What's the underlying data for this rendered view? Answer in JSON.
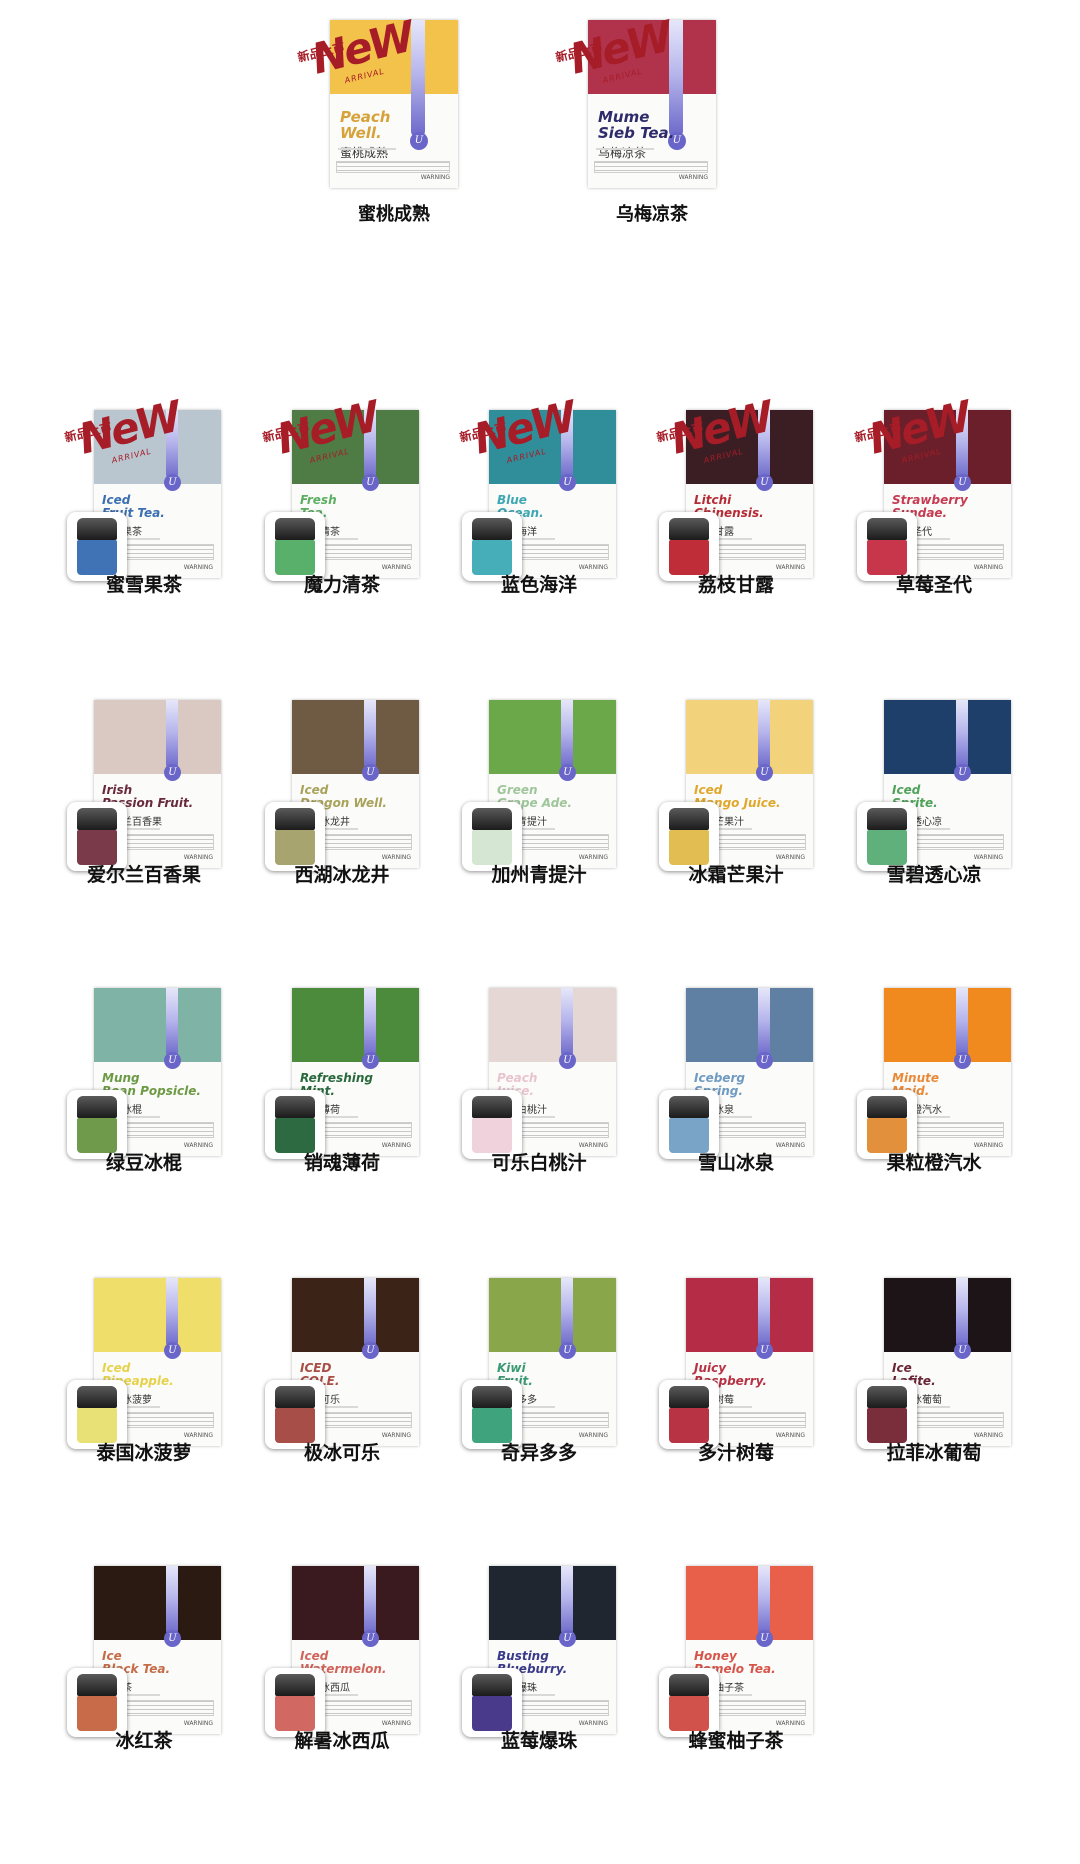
{
  "brand_glyph": "U",
  "badge": {
    "tag": "新品上市",
    "word": "NeW",
    "sub": "ARRIVAL"
  },
  "warning": "WARNING",
  "featured": [
    {
      "label": "蜜桃成熟",
      "en": "Peach\nWell.",
      "cn": "蜜桃成熟",
      "photo": "#f3c24a",
      "text_color": "#d7a23a",
      "badge": true
    },
    {
      "label": "乌梅凉茶",
      "en": "Mume\nSieb Tea.",
      "cn": "乌梅凉茶",
      "photo": "#b0334b",
      "text_color": "#2e2b6b",
      "badge": true
    }
  ],
  "products": [
    {
      "label": "蜜雪果茶",
      "en": "Iced\nFruit Tea.",
      "cn": "蜜雪果茶",
      "photo": "#b9c6cf",
      "text_color": "#3b6fb0",
      "pod": "#3f73b5",
      "badge": true
    },
    {
      "label": "魔力清茶",
      "en": "Fresh\nTea.",
      "cn": "魔力清茶",
      "photo": "#4f7b45",
      "text_color": "#5cae62",
      "pod": "#59b06a",
      "badge": true
    },
    {
      "label": "蓝色海洋",
      "en": "Blue\nOcean.",
      "cn": "蓝色海洋",
      "photo": "#2f8e9a",
      "text_color": "#3ea7b4",
      "pod": "#46aeb8",
      "badge": true
    },
    {
      "label": "荔枝甘露",
      "en": "Litchi\nChinensis.",
      "cn": "荔枝甘露",
      "photo": "#3a1e23",
      "text_color": "#b62b36",
      "pod": "#bf2e38",
      "badge": true
    },
    {
      "label": "草莓圣代",
      "en": "Strawberry\nSundae.",
      "cn": "草莓圣代",
      "photo": "#6a1f2a",
      "text_color": "#c63a52",
      "pod": "#c8364c",
      "badge": true
    },
    {
      "label": "爱尔兰百香果",
      "en": "Irish\nPassion Fruit.",
      "cn": "爱尔兰百香果",
      "photo": "#d9c9c2",
      "text_color": "#6a2a3e",
      "pod": "#7a3a4a",
      "badge": false
    },
    {
      "label": "西湖冰龙井",
      "en": "Iced\nDragon Well.",
      "cn": "西湖冰龙井",
      "photo": "#6f5a44",
      "text_color": "#a8a25a",
      "pod": "#a8a470",
      "badge": false
    },
    {
      "label": "加州青提汁",
      "en": "Green\nGrape Ade.",
      "cn": "加州青提汁",
      "photo": "#6aa84a",
      "text_color": "#9fc59a",
      "pod": "#d5e6d2",
      "badge": false
    },
    {
      "label": "冰霜芒果汁",
      "en": "Iced\nMango Juice.",
      "cn": "冰霜芒果汁",
      "photo": "#f2d27a",
      "text_color": "#e0a72a",
      "pod": "#e2bd52",
      "badge": false
    },
    {
      "label": "雪碧透心凉",
      "en": "Iced\nSprite.",
      "cn": "雪碧透心凉",
      "photo": "#1e3f6a",
      "text_color": "#4ea25a",
      "pod": "#5fb07a",
      "badge": false
    },
    {
      "label": "绿豆冰棍",
      "en": "Mung\nBean Popsicle.",
      "cn": "绿豆冰棍",
      "photo": "#7fb3a6",
      "text_color": "#6c9a45",
      "pod": "#6f9a4c",
      "badge": false
    },
    {
      "label": "销魂薄荷",
      "en": "Refreshing\nMint.",
      "cn": "销魂薄荷",
      "photo": "#4c8a3c",
      "text_color": "#2a6a3e",
      "pod": "#2d6a41",
      "badge": false
    },
    {
      "label": "可乐白桃汁",
      "en": "Peach\nJuice.",
      "cn": "可乐白桃汁",
      "photo": "#e4d7d4",
      "text_color": "#e9c4cf",
      "pod": "#f0d2dd",
      "badge": false
    },
    {
      "label": "雪山冰泉",
      "en": "Iceberg\nSpring.",
      "cn": "雪山冰泉",
      "photo": "#5f7fa3",
      "text_color": "#6f9ac2",
      "pod": "#7aa3c8",
      "badge": false
    },
    {
      "label": "果粒橙汽水",
      "en": "Minute\nMaid.",
      "cn": "果粒橙汽水",
      "photo": "#f08a1e",
      "text_color": "#e88a3a",
      "pod": "#e3903d",
      "badge": false
    },
    {
      "label": "泰国冰菠萝",
      "en": "Iced\nPineapple.",
      "cn": "泰国冰菠萝",
      "photo": "#f0de6a",
      "text_color": "#e6d24a",
      "pod": "#e8e276",
      "badge": false
    },
    {
      "label": "极冰可乐",
      "en": "ICED\nCOLE.",
      "cn": "极冰可乐",
      "photo": "#3b2417",
      "text_color": "#a84e45",
      "pod": "#a64e47",
      "badge": false
    },
    {
      "label": "奇异多多",
      "en": "Kiwi\nFruit.",
      "cn": "奇异多多",
      "photo": "#8aa64a",
      "text_color": "#3a9a73",
      "pod": "#3fa47d",
      "badge": false
    },
    {
      "label": "多汁树莓",
      "en": "Juicy\nRaspberry.",
      "cn": "多汁树莓",
      "photo": "#b42c45",
      "text_color": "#b73245",
      "pod": "#b83444",
      "badge": false
    },
    {
      "label": "拉菲冰葡萄",
      "en": "Ice\nLafite.",
      "cn": "拉菲冰葡萄",
      "photo": "#1c1416",
      "text_color": "#6a2436",
      "pod": "#7a2e3c",
      "badge": false
    },
    {
      "label": "冰红茶",
      "en": "Ice\nBlack Tea.",
      "cn": "冰红茶",
      "photo": "#2a1a12",
      "text_color": "#c46c48",
      "pod": "#c76b48",
      "badge": false
    },
    {
      "label": "解暑冰西瓜",
      "en": "Iced\nWatermelon.",
      "cn": "解暑冰西瓜",
      "photo": "#3a1a1f",
      "text_color": "#d0645a",
      "pod": "#d26862",
      "badge": false
    },
    {
      "label": "蓝莓爆珠",
      "en": "Busting\nBlueburry.",
      "cn": "蓝莓爆珠",
      "photo": "#1f2630",
      "text_color": "#3a3a8a",
      "pod": "#4a3a8c",
      "badge": false
    },
    {
      "label": "蜂蜜柚子茶",
      "en": "Honey\nPomelo Tea.",
      "cn": "蜂蜜柚子茶",
      "photo": "#e8604a",
      "text_color": "#d6544a",
      "pod": "#d0524a",
      "badge": false
    }
  ]
}
